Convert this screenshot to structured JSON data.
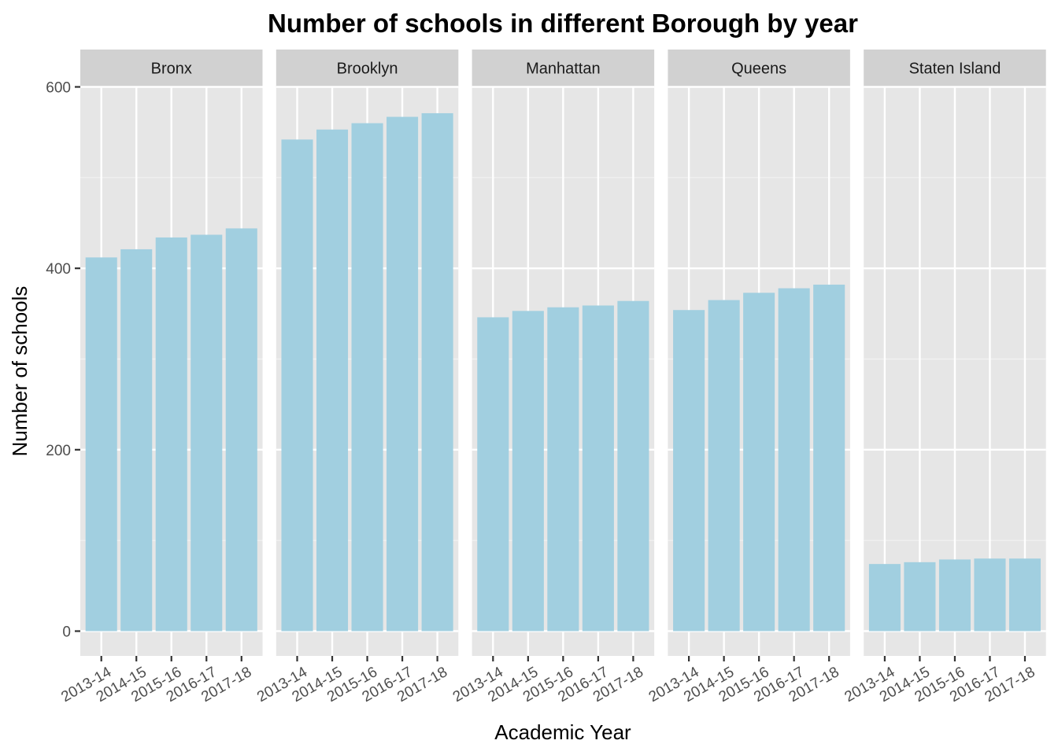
{
  "chart_data": {
    "type": "bar",
    "title": "Number of schools in different Borough by year",
    "xlabel": "Academic Year",
    "ylabel": "Number of schools",
    "ylim": [
      0,
      630
    ],
    "yticks": [
      0,
      200,
      400,
      600
    ],
    "grid": true,
    "legend": "none",
    "bar_color": "#A1CFE0",
    "panel_color": "#E6E6E6",
    "strip_color": "#D1D1D1",
    "categories": [
      "2013-14",
      "2014-15",
      "2015-16",
      "2016-17",
      "2017-18"
    ],
    "panels": [
      {
        "name": "Bronx",
        "values": [
          412,
          421,
          434,
          437,
          444
        ]
      },
      {
        "name": "Brooklyn",
        "values": [
          542,
          553,
          560,
          567,
          571
        ]
      },
      {
        "name": "Manhattan",
        "values": [
          346,
          353,
          357,
          359,
          364
        ]
      },
      {
        "name": "Queens",
        "values": [
          354,
          365,
          373,
          378,
          382
        ]
      },
      {
        "name": "Staten Island",
        "values": [
          74,
          76,
          79,
          80,
          80
        ]
      }
    ]
  }
}
